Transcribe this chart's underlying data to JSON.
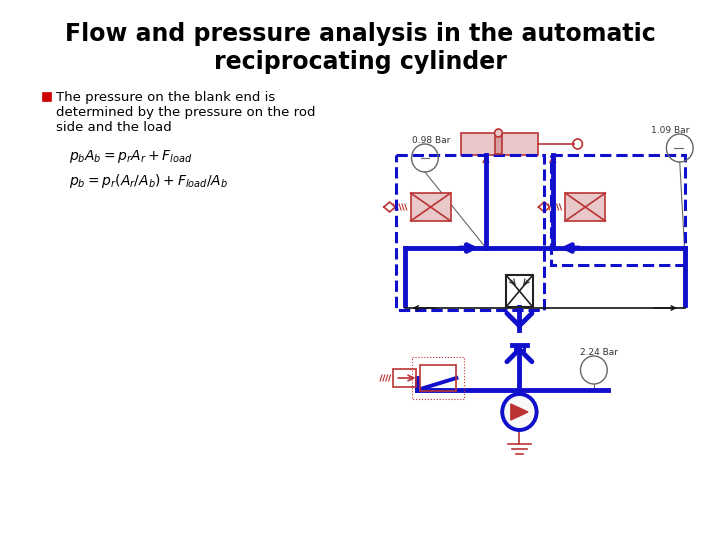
{
  "title_line1": "Flow and pressure analysis in the automatic",
  "title_line2": "reciprocating cylinder",
  "bullet_text_line1": "The pressure on the blank end is",
  "bullet_text_line2": "determined by the pressure on the rod",
  "bullet_text_line3": "side and the load",
  "eq1": "$p_b A_b = p_r A_r + F_{load}$",
  "eq2": "$p_b = p_r(A_r/A_b)+ F_{load}/A_b$",
  "label_left": "0.98 Bar",
  "label_right": "1.09 Bar",
  "label_bottom": "2.24 Bar",
  "bg_color": "#ffffff",
  "title_color": "#000000",
  "bullet_color": "#cc0000",
  "text_color": "#000000",
  "blue": "#1010cc",
  "red": "#bb3333",
  "lightred": "#e8c8c8",
  "gray": "#666666"
}
